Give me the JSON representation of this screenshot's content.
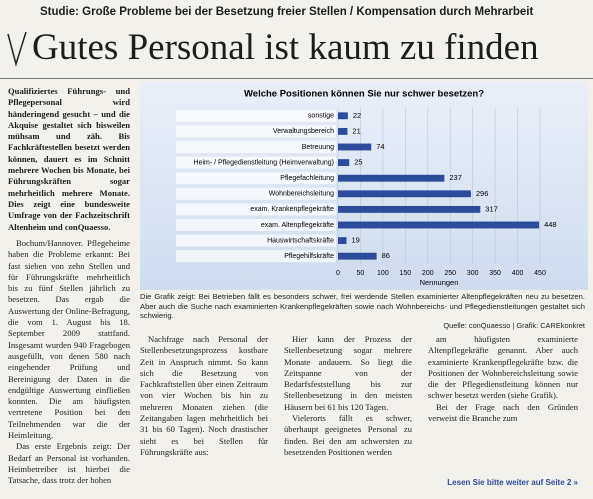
{
  "header": {
    "kicker": "Studie: Große Probleme bei der Besetzung freier Stellen / Kompensation durch Mehrarbeit",
    "headline": "Gutes Personal ist kaum zu finden"
  },
  "lead": "Qualifiziertes Führungs- und Pflegepersonal wird händeringend gesucht – und die Akquise gestaltet sich bisweilen mühsam und zäh. Bis Fachkräftestellen besetzt werden können, dauert es im Schnitt mehrere Wochen bis Monate, bei Führungskräften sogar mehrheitlich mehrere Monate. Dies zeigt eine bundesweite Umfrage von der Fachzeitschrift Altenheim und conQuaesso.",
  "columns": [
    [
      "Bochum/Hannover. Pflegeheime haben die Probleme erkannt: Bei fast sieben von zehn Stellen und für Führungskräfte mehrheitlich bis zu fünf Stellen jährlich zu besetzen. Das ergab die Auswertung der Online-Befragung, die vom 1. August bis 18. September 2009 stattfand. Insgesamt wurden 940 Fragebogen ausgefüllt, von denen 580 nach eingehender Prüfung und Bereinigung der Daten in die endgültige Auswertung einfließen konnten. Die am häufigsten vertretene Position bei den Teilnehmenden war die der Heimleitung.",
      "Das erste Ergebnis zeigt: Der Bedarf an Personal ist vorhanden. Heimbetreiber ist hierbei die Tatsache, dass trotz der hohen"
    ],
    [
      "Nachfrage nach Personal der Stellenbesetzungsprozess kostbare Zeit in Anspruch nimmt. So kann sich die Besetzung von Fachkraftstellen über einen Zeitraum von vier Wochen bis hin zu mehreren Monaten ziehen (die Zeitangaben lagen mehrheitlich bei 31 bis 60 Tagen). Noch drastischer sieht es bei Stellen für Führungskräfte aus:"
    ],
    [
      "Hier kann der Prozess der Stellenbesetzung sogar mehrere Monate andauern. So liegt die Zeitspanne von der Bedarfsfeststellung bis zur Stellenbesetzung in den meisten Häusern bei 61 bis 120 Tagen.",
      "Vielerorts fällt es schwer, überhaupt geeignetes Personal zu finden. Bei den am schwersten zu besetzenden Positionen werden"
    ],
    [
      "am häufigsten examinierte Altenpflegekräfte genannt. Aber auch examinierte Krankenpflegekräfte bzw. die Positionen der Wohnbereichsleitung sowie die der Pflegedienstleitung können nur schwer besetzt werden (siehe Grafik).",
      "Bei der Frage nach den Gründen verweist die Branche zum"
    ]
  ],
  "footer_link": "Lesen Sie bitte weiter auf Seite 2 »",
  "chart_data": {
    "type": "bar",
    "orientation": "horizontal",
    "title": "Welche Positionen können Sie nur schwer besetzen?",
    "categories": [
      "sonstige",
      "Verwaltungsbereich",
      "Betreuung",
      "Heim- / Pflegedienstleitung (Heimverwaltung)",
      "Pflegefachleitung",
      "Wohnbereichsleitung",
      "exam. Krankenpflegekräfte",
      "exam. Altenpflegekräfte",
      "Hauswirtschaftskräfte",
      "Pflegehilfskräfte"
    ],
    "values": [
      22,
      21,
      74,
      25,
      237,
      296,
      317,
      448,
      19,
      86
    ],
    "color": "#2c4b9b",
    "xlim": [
      0,
      450
    ],
    "xticks": [
      0,
      50,
      100,
      150,
      200,
      250,
      300,
      350,
      400,
      450
    ],
    "xlabel": "Nennungen",
    "grid": true,
    "caption": "Die Grafik zeigt: Bei Betrieben fällt es besonders schwer, frei werdende Stellen examinierter Altenpflegekräften neu zu besetzen. Aber auch die Suche nach examinierten Krankenpflegekräften sowie nach Wohnbereichs- und Pflegedienstleitungen gestaltet sich schwierig.",
    "source": "Quelle: conQuaesso | Grafik: CAREkonkret"
  }
}
